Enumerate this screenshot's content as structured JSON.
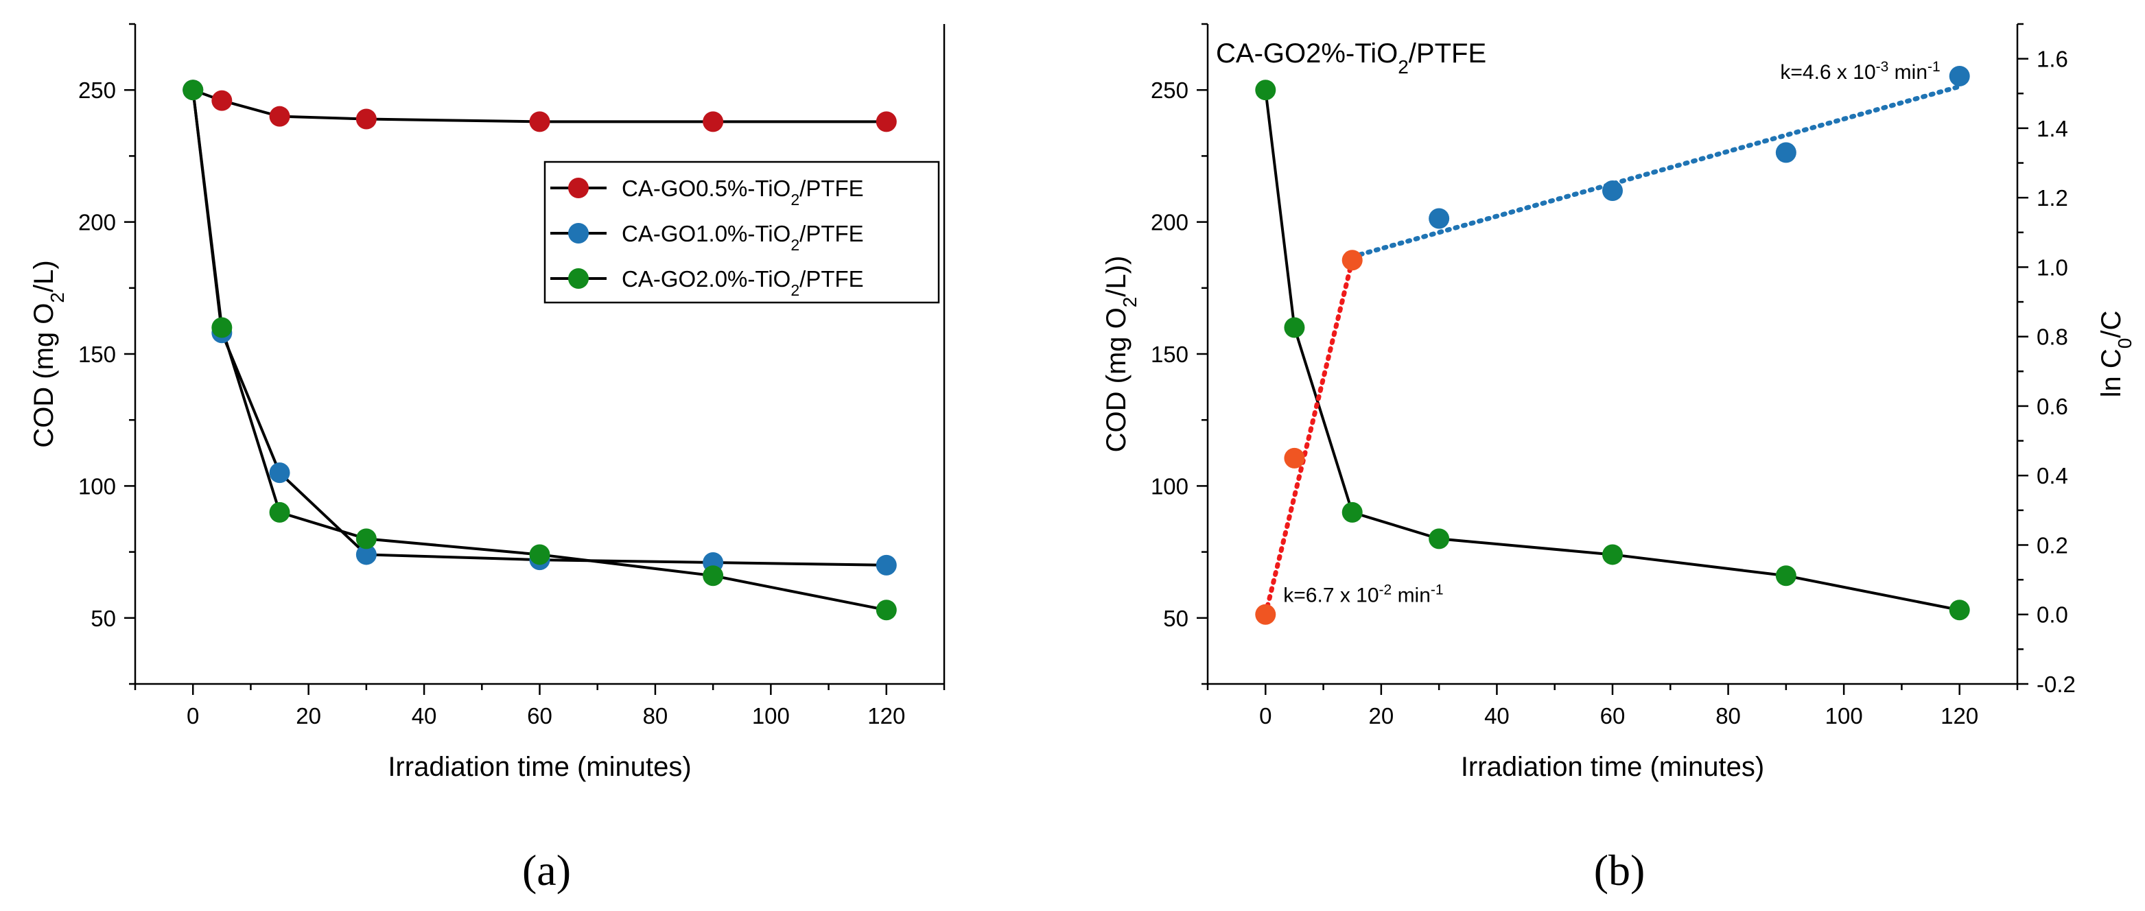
{
  "colors": {
    "red": "#c0141b",
    "blue": "#1f74b4",
    "green": "#118a1c",
    "orange": "#f05522",
    "fit_red": "#ef1a1a",
    "fit_blue": "#1f74b4"
  },
  "chart_data": [
    {
      "type": "line",
      "panel_label": "(a)",
      "xlabel": "Irradiation time (minutes)",
      "ylabel": {
        "pre": "COD (mg O",
        "sub": "2",
        "post": "/L)"
      },
      "xlim": [
        -10,
        130
      ],
      "ylim": [
        25,
        275
      ],
      "xticks": [
        0,
        20,
        40,
        60,
        80,
        100,
        120
      ],
      "yticks": [
        50,
        100,
        150,
        200,
        250
      ],
      "x": [
        0,
        5,
        15,
        30,
        60,
        90,
        120
      ],
      "series": [
        {
          "name_pre": "CA-GO0.5%-TiO",
          "name_sub": "2",
          "name_post": "/PTFE",
          "color": "red",
          "values": [
            250,
            246,
            240,
            239,
            238,
            238,
            238
          ]
        },
        {
          "name_pre": "CA-GO1.0%-TiO",
          "name_sub": "2",
          "name_post": "/PTFE",
          "color": "blue",
          "values": [
            250,
            158,
            105,
            74,
            72,
            71,
            70
          ]
        },
        {
          "name_pre": "CA-GO2.0%-TiO",
          "name_sub": "2",
          "name_post": "/PTFE",
          "color": "green",
          "values": [
            250,
            160,
            90,
            80,
            74,
            66,
            53
          ]
        }
      ],
      "legend_position": "top-right"
    },
    {
      "type": "line",
      "panel_label": "(b)",
      "title": {
        "pre": "CA-GO2%-TiO",
        "sub": "2",
        "post": "/PTFE"
      },
      "xlabel": "Irradiation time (minutes)",
      "ylabel": {
        "pre": "COD (mg O",
        "sub": "2",
        "post": "/L))"
      },
      "y2label": {
        "pre": "ln C",
        "sub": "0",
        "post": "/C"
      },
      "xlim": [
        -10,
        130
      ],
      "ylim": [
        25,
        275
      ],
      "y2lim": [
        -0.2,
        1.7
      ],
      "xticks": [
        0,
        20,
        40,
        60,
        80,
        100,
        120
      ],
      "yticks": [
        50,
        100,
        150,
        200,
        250
      ],
      "y2ticks": [
        -0.2,
        0.0,
        0.2,
        0.4,
        0.6,
        0.8,
        1.0,
        1.2,
        1.4,
        1.6
      ],
      "y2tick_labels": [
        "-0.2",
        "0.0",
        "0.2",
        "0.4",
        "0.6",
        "0.8",
        "1.0",
        "1.2",
        "1.4",
        "1.6"
      ],
      "cod_series": {
        "color": "green",
        "x": [
          0,
          5,
          15,
          30,
          60,
          90,
          120
        ],
        "values": [
          250,
          160,
          90,
          80,
          74,
          66,
          53
        ]
      },
      "lnc_fast": {
        "color": "orange",
        "x": [
          0,
          5,
          15
        ],
        "values": [
          0.0,
          0.45,
          1.02
        ]
      },
      "lnc_slow": {
        "color": "blue",
        "x": [
          30,
          60,
          90,
          120
        ],
        "values": [
          1.14,
          1.22,
          1.33,
          1.55
        ]
      },
      "fit_fast": {
        "x": [
          0,
          15
        ],
        "values": [
          0.0,
          1.02
        ],
        "label_pre": "k=6.7 x 10",
        "label_sup": "-2",
        "label_post": " min",
        "label_sup2": "-1"
      },
      "fit_slow": {
        "x": [
          15,
          120
        ],
        "values": [
          1.03,
          1.52
        ],
        "label_pre": "k=4.6 x 10",
        "label_sup": "-3",
        "label_post": " min",
        "label_sup2": "-1"
      }
    }
  ]
}
